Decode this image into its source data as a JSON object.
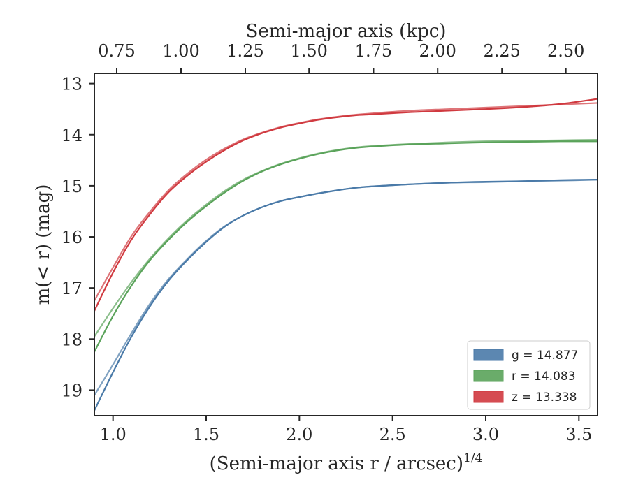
{
  "chart_data": {
    "type": "line",
    "title": "",
    "xlabel": "(Semi-major axis r / arcsec)",
    "xlabel_superscript": "1/4",
    "ylabel": "m(< r) (mag)",
    "top_xlabel": "Semi-major axis (kpc)",
    "xlim": [
      0.9,
      3.6
    ],
    "ylim": [
      19.5,
      12.8
    ],
    "y_inverted": true,
    "x_ticks": [
      1.0,
      1.5,
      2.0,
      2.5,
      3.0,
      3.5
    ],
    "x_tick_labels": [
      "1.0",
      "1.5",
      "2.0",
      "2.5",
      "3.0",
      "3.5"
    ],
    "y_ticks": [
      13,
      14,
      15,
      16,
      17,
      18,
      19
    ],
    "y_tick_labels": [
      "13",
      "14",
      "15",
      "16",
      "17",
      "18",
      "19"
    ],
    "top_ticks": [
      0.75,
      1.0,
      1.25,
      1.5,
      1.75,
      2.0,
      2.25,
      2.5
    ],
    "top_tick_labels": [
      "0.75",
      "1.00",
      "1.25",
      "1.50",
      "1.75",
      "2.00",
      "2.25",
      "2.50"
    ],
    "top_tick_x": [
      1.02,
      1.365,
      1.71,
      2.052,
      2.398,
      2.742,
      3.087,
      3.43
    ],
    "grid": false,
    "legend_position": "bottom-right",
    "series": [
      {
        "name": "g",
        "legend_label": "g = 14.877",
        "color": "#4a7aa8",
        "x": [
          0.9,
          1.0,
          1.1,
          1.2,
          1.3,
          1.4,
          1.5,
          1.6,
          1.7,
          1.8,
          1.9,
          2.0,
          2.1,
          2.2,
          2.3,
          2.4,
          2.6,
          2.8,
          3.0,
          3.2,
          3.4,
          3.6
        ],
        "y": [
          19.4,
          18.65,
          17.95,
          17.35,
          16.85,
          16.45,
          16.1,
          15.8,
          15.58,
          15.42,
          15.3,
          15.22,
          15.15,
          15.09,
          15.04,
          15.01,
          14.97,
          14.94,
          14.92,
          14.91,
          14.89,
          14.88
        ],
        "y_alt": [
          19.1,
          18.5,
          17.88,
          17.3,
          16.82,
          16.43,
          16.08,
          15.79,
          15.58,
          15.42,
          15.3,
          15.22,
          15.15,
          15.09,
          15.04,
          15.01,
          14.97,
          14.94,
          14.93,
          14.91,
          14.9,
          14.88
        ]
      },
      {
        "name": "r",
        "legend_label": "r = 14.083",
        "color": "#5aa35a",
        "x": [
          0.9,
          1.0,
          1.1,
          1.2,
          1.3,
          1.4,
          1.5,
          1.6,
          1.7,
          1.8,
          1.9,
          2.0,
          2.1,
          2.2,
          2.3,
          2.4,
          2.6,
          2.8,
          3.0,
          3.2,
          3.4,
          3.6
        ],
        "y": [
          18.25,
          17.55,
          16.95,
          16.45,
          16.05,
          15.7,
          15.4,
          15.13,
          14.9,
          14.72,
          14.58,
          14.47,
          14.38,
          14.31,
          14.26,
          14.23,
          14.19,
          14.17,
          14.15,
          14.14,
          14.13,
          14.13
        ],
        "y_alt": [
          17.95,
          17.4,
          16.88,
          16.42,
          16.02,
          15.67,
          15.37,
          15.1,
          14.88,
          14.71,
          14.57,
          14.46,
          14.37,
          14.3,
          14.25,
          14.22,
          14.18,
          14.15,
          14.13,
          14.12,
          14.11,
          14.1
        ]
      },
      {
        "name": "z",
        "legend_label": "z = 13.338",
        "color": "#d0393f",
        "x": [
          0.9,
          1.0,
          1.1,
          1.2,
          1.3,
          1.4,
          1.5,
          1.6,
          1.7,
          1.8,
          1.9,
          2.0,
          2.1,
          2.2,
          2.3,
          2.4,
          2.6,
          2.8,
          3.0,
          3.2,
          3.4,
          3.6
        ],
        "y": [
          17.45,
          16.7,
          16.05,
          15.55,
          15.12,
          14.8,
          14.53,
          14.3,
          14.11,
          13.97,
          13.86,
          13.78,
          13.71,
          13.66,
          13.62,
          13.6,
          13.56,
          13.53,
          13.5,
          13.46,
          13.4,
          13.3
        ],
        "y_alt": [
          17.25,
          16.6,
          15.98,
          15.5,
          15.08,
          14.76,
          14.49,
          14.27,
          14.09,
          13.96,
          13.85,
          13.77,
          13.7,
          13.65,
          13.61,
          13.58,
          13.53,
          13.5,
          13.47,
          13.44,
          13.41,
          13.38
        ]
      }
    ]
  }
}
